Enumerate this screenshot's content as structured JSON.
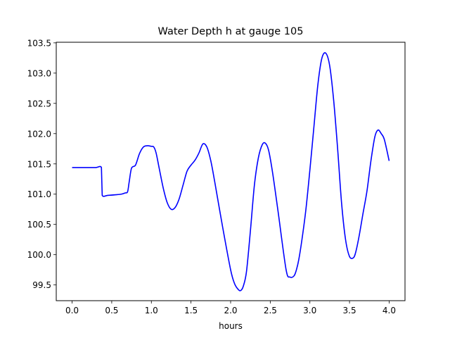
{
  "chart_data": {
    "type": "line",
    "title": "Water Depth h at gauge 105",
    "xlabel": "hours",
    "ylabel": "",
    "xlim": [
      -0.2,
      4.2
    ],
    "ylim": [
      99.24,
      103.51
    ],
    "xticks": [
      0.0,
      0.5,
      1.0,
      1.5,
      2.0,
      2.5,
      3.0,
      3.5,
      4.0
    ],
    "xtick_labels": [
      "0.0",
      "0.5",
      "1.0",
      "1.5",
      "2.0",
      "2.5",
      "3.0",
      "3.5",
      "4.0"
    ],
    "yticks": [
      99.5,
      100.0,
      100.5,
      101.0,
      101.5,
      102.0,
      102.5,
      103.0,
      103.5
    ],
    "ytick_labels": [
      "99.5",
      "100.0",
      "100.5",
      "101.0",
      "101.5",
      "102.0",
      "102.5",
      "103.0",
      "103.5"
    ],
    "grid": false,
    "legend": "none",
    "series": [
      {
        "color": "#0000ff",
        "x": [
          0.0,
          0.1,
          0.2,
          0.3,
          0.37,
          0.375,
          0.38,
          0.45,
          0.55,
          0.62,
          0.67,
          0.7,
          0.72,
          0.75,
          0.8,
          0.85,
          0.9,
          0.95,
          1.0,
          1.03,
          1.06,
          1.1,
          1.15,
          1.2,
          1.25,
          1.3,
          1.35,
          1.4,
          1.45,
          1.5,
          1.55,
          1.6,
          1.65,
          1.7,
          1.75,
          1.8,
          1.9,
          2.0,
          2.05,
          2.1,
          2.13,
          2.16,
          2.2,
          2.25,
          2.3,
          2.35,
          2.4,
          2.44,
          2.48,
          2.53,
          2.6,
          2.7,
          2.75,
          2.8,
          2.83,
          2.86,
          2.9,
          2.95,
          3.0,
          3.05,
          3.1,
          3.15,
          3.2,
          3.25,
          3.3,
          3.35,
          3.4,
          3.45,
          3.5,
          3.55,
          3.58,
          3.62,
          3.67,
          3.72,
          3.77,
          3.82,
          3.86,
          3.9,
          3.94,
          4.0
        ],
        "y": [
          101.44,
          101.44,
          101.44,
          101.44,
          101.44,
          101.2,
          100.98,
          100.98,
          100.99,
          101.0,
          101.02,
          101.04,
          101.2,
          101.43,
          101.48,
          101.67,
          101.78,
          101.8,
          101.79,
          101.78,
          101.68,
          101.42,
          101.1,
          100.86,
          100.75,
          100.78,
          100.92,
          101.15,
          101.38,
          101.48,
          101.56,
          101.68,
          101.83,
          101.78,
          101.55,
          101.2,
          100.45,
          99.75,
          99.52,
          99.42,
          99.41,
          99.48,
          99.72,
          100.4,
          101.15,
          101.6,
          101.82,
          101.84,
          101.72,
          101.35,
          100.7,
          99.75,
          99.63,
          99.65,
          99.75,
          99.92,
          100.25,
          100.75,
          101.4,
          102.1,
          102.8,
          103.24,
          103.33,
          103.12,
          102.55,
          101.75,
          100.85,
          100.25,
          99.97,
          99.95,
          100.05,
          100.3,
          100.68,
          101.05,
          101.55,
          101.95,
          102.06,
          102.0,
          101.9,
          101.55
        ]
      }
    ]
  }
}
